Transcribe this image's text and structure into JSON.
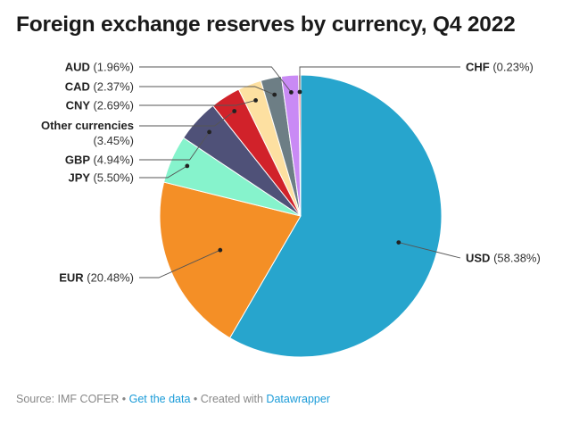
{
  "chart_data": {
    "type": "pie",
    "title": "Foreign exchange reserves by currency, Q4 2022",
    "unit": "%",
    "slices": [
      {
        "name": "USD",
        "value": 58.38,
        "label": "(58.38%)",
        "color": "#27a5cd"
      },
      {
        "name": "EUR",
        "value": 20.48,
        "label": "(20.48%)",
        "color": "#f48f26"
      },
      {
        "name": "JPY",
        "value": 5.5,
        "label": "(5.50%)",
        "color": "#86f3cc"
      },
      {
        "name": "GBP",
        "value": 4.94,
        "label": "(4.94%)",
        "color": "#4f5178"
      },
      {
        "name": "Other currencies",
        "value": 3.45,
        "label": "(3.45%)",
        "color": "#d1222a"
      },
      {
        "name": "CNY",
        "value": 2.69,
        "label": "(2.69%)",
        "color": "#fde0a1"
      },
      {
        "name": "CAD",
        "value": 2.37,
        "label": "(2.37%)",
        "color": "#6d7e85"
      },
      {
        "name": "AUD",
        "value": 1.96,
        "label": "(1.96%)",
        "color": "#c98af5"
      },
      {
        "name": "CHF",
        "value": 0.23,
        "label": "(0.23%)",
        "color": "#f36b6b"
      }
    ]
  },
  "footer": {
    "source": "Source: IMF COFER",
    "separator": " • ",
    "link": "Get the data",
    "created": "Created with ",
    "tool": "Datawrapper"
  }
}
